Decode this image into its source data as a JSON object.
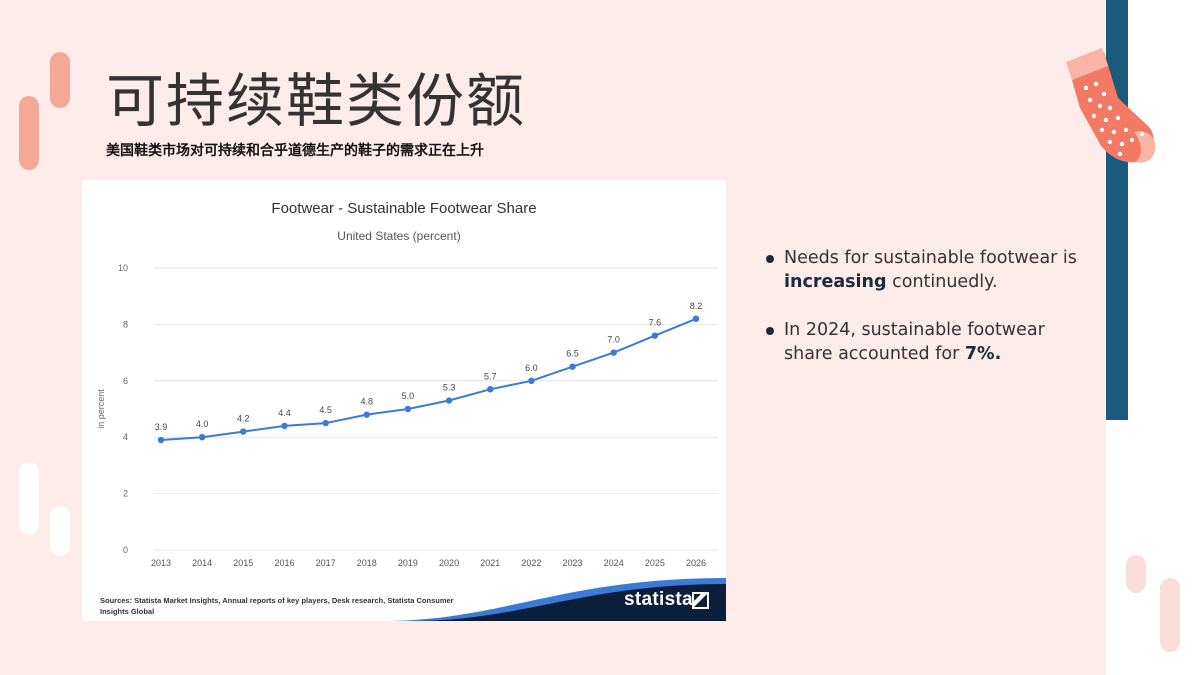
{
  "slide": {
    "title": "可持续鞋类份额",
    "subtitle": "美国鞋类市场对可持续和合乎道德生产的鞋子的需求正在上升"
  },
  "bullets": [
    {
      "pre": "Needs for sustainable footwear is ",
      "bold": "increasing",
      "post": " continuedly."
    },
    {
      "pre": "In 2024, sustainable footwear share accounted for ",
      "bold": "7%.",
      "post": ""
    }
  ],
  "colors": {
    "background": "#fdecea",
    "accent_blue": "#1a5a7c",
    "accent_coral": "#f4a896",
    "series_line": "#3a7bd5",
    "statista_navy": "#0b1f3a"
  },
  "decor": {
    "sock": "sock-illustration"
  },
  "chart_data": {
    "type": "line",
    "title": "Footwear - Sustainable Footwear Share",
    "subtitle": "United States (percent)",
    "ylabel": "in percent",
    "xlabel": "",
    "x": [
      "2013",
      "2014",
      "2015",
      "2016",
      "2017",
      "2018",
      "2019",
      "2020",
      "2021",
      "2022",
      "2023",
      "2024",
      "2025",
      "2026"
    ],
    "values": [
      3.9,
      4.0,
      4.2,
      4.4,
      4.5,
      4.8,
      5.0,
      5.3,
      5.7,
      6.0,
      6.5,
      7.0,
      7.6,
      8.2
    ],
    "labels": [
      "3.9",
      "4.0",
      "4.2",
      "4.4",
      "4.5",
      "4.8",
      "5.0",
      "5.3",
      "5.7",
      "6.0",
      "6.5",
      "7.0",
      "7.6",
      "8.2"
    ],
    "ylim": [
      0,
      10
    ],
    "yticks": [
      "0",
      "2",
      "4",
      "6",
      "8",
      "10"
    ],
    "grid": true,
    "sources": "Sources: Statista Market Insights, Annual reports of key players, Desk research, Statista Consumer Insights Global",
    "brand": "statista"
  }
}
